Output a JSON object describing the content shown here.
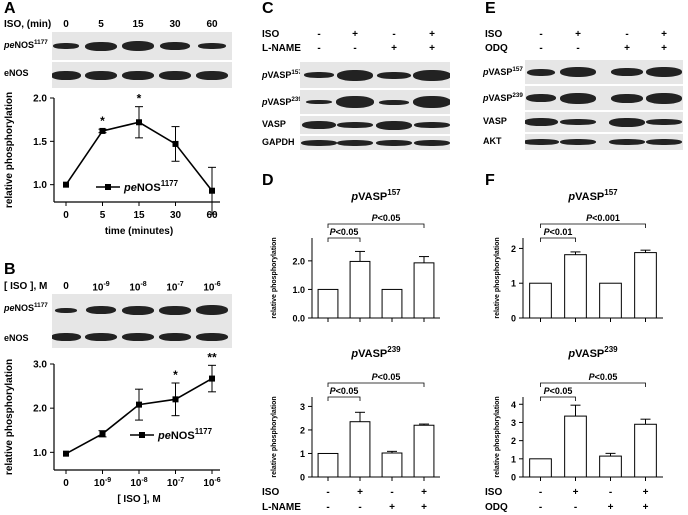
{
  "panels": {
    "A": {
      "letter": "A",
      "iso_header": "ISO, (min)",
      "lanes": [
        "0",
        "5",
        "15",
        "30",
        "60"
      ],
      "blot_rows": [
        {
          "label_prefix": "pe",
          "label_main": "NOS",
          "label_sup": "1177"
        },
        {
          "label_prefix": "",
          "label_main": "eNOS",
          "label_sup": ""
        }
      ],
      "chart": {
        "type": "line",
        "x": [
          "0",
          "5",
          "15",
          "30",
          "60"
        ],
        "values": [
          1.0,
          1.62,
          1.72,
          1.47,
          0.93
        ],
        "errors": [
          0.0,
          0.02,
          0.18,
          0.2,
          0.27
        ],
        "significance": [
          "",
          "*",
          "*",
          "",
          ""
        ],
        "ylim": [
          0.8,
          2.0
        ],
        "yticks": [
          "1.0",
          "1.5",
          "2.0"
        ],
        "xlabel": "time (minutes)",
        "ylabel": "relative phosphorylation",
        "legend": {
          "prefix": "pe",
          "main": "NOS",
          "sup": "1177"
        }
      }
    },
    "B": {
      "letter": "B",
      "iso_header": "[ ISO ], M",
      "lanes": [
        "0",
        "10-9",
        "10-8",
        "10-7",
        "10-6"
      ],
      "blot_rows": [
        {
          "label_prefix": "pe",
          "label_main": "NOS",
          "label_sup": "1177"
        },
        {
          "label_prefix": "",
          "label_main": "eNOS",
          "label_sup": ""
        }
      ],
      "chart": {
        "type": "line",
        "x": [
          "0",
          "10-9",
          "10-8",
          "10-7",
          "10-6"
        ],
        "values": [
          0.97,
          1.42,
          2.08,
          2.2,
          2.67
        ],
        "errors": [
          0.0,
          0.07,
          0.35,
          0.37,
          0.3
        ],
        "significance": [
          "",
          "",
          "",
          "*",
          "**"
        ],
        "ylim": [
          0.6,
          3.0
        ],
        "yticks": [
          "1.0",
          "2.0",
          "3.0"
        ],
        "xlabel": "[ ISO ], M",
        "ylabel": "relative phosphorylation",
        "legend": {
          "prefix": "pe",
          "main": "NOS",
          "sup": "1177"
        }
      }
    },
    "C": {
      "letter": "C",
      "treatments": [
        {
          "name": "ISO",
          "signs": [
            "-",
            "+",
            "-",
            "+"
          ]
        },
        {
          "name": "L-NAME",
          "signs": [
            "-",
            "-",
            "+",
            "+"
          ]
        }
      ],
      "blot_rows": [
        {
          "label_prefix": "p",
          "label_main": "VASP",
          "label_sup": "157"
        },
        {
          "label_prefix": "p",
          "label_main": "VASP",
          "label_sup": "239"
        },
        {
          "label_prefix": "",
          "label_main": "VASP",
          "label_sup": ""
        },
        {
          "label_prefix": "",
          "label_main": "GAPDH",
          "label_sup": ""
        }
      ]
    },
    "D": {
      "letter": "D",
      "charts": [
        {
          "type": "bar",
          "title_prefix": "p",
          "title_main": "VASP",
          "title_sup": "157",
          "values": [
            1.0,
            1.98,
            1.0,
            1.93
          ],
          "errors": [
            0.0,
            0.35,
            0.0,
            0.22
          ],
          "ylim": [
            0,
            2.8
          ],
          "yticks": [
            "0.0",
            "1.0",
            "2.0"
          ],
          "ylabel": "relative phosphorylation",
          "comparisons": [
            {
              "from": 0,
              "to": 1,
              "text": "P<0.05"
            },
            {
              "from": 0,
              "to": 3,
              "text": "P<0.05"
            }
          ]
        },
        {
          "type": "bar",
          "title_prefix": "p",
          "title_main": "VASP",
          "title_sup": "239",
          "values": [
            1.0,
            2.35,
            1.02,
            2.2
          ],
          "errors": [
            0.0,
            0.4,
            0.07,
            0.05
          ],
          "ylim": [
            0,
            3.4
          ],
          "yticks": [
            "0",
            "1",
            "2",
            "3"
          ],
          "ylabel": "relative phosphorylation",
          "comparisons": [
            {
              "from": 0,
              "to": 1,
              "text": "P<0.05"
            },
            {
              "from": 0,
              "to": 3,
              "text": "P<0.05"
            }
          ]
        }
      ],
      "treatments": [
        {
          "name": "ISO",
          "signs": [
            "-",
            "+",
            "-",
            "+"
          ]
        },
        {
          "name": "L-NAME",
          "signs": [
            "-",
            "-",
            "+",
            "+"
          ]
        }
      ]
    },
    "E": {
      "letter": "E",
      "treatments": [
        {
          "name": "ISO",
          "signs": [
            "-",
            "+",
            "-",
            "+"
          ]
        },
        {
          "name": "ODQ",
          "signs": [
            "-",
            "-",
            "+",
            "+"
          ]
        }
      ],
      "blot_rows": [
        {
          "label_prefix": "p",
          "label_main": "VASP",
          "label_sup": "157"
        },
        {
          "label_prefix": "p",
          "label_main": "VASP",
          "label_sup": "239"
        },
        {
          "label_prefix": "",
          "label_main": "VASP",
          "label_sup": ""
        },
        {
          "label_prefix": "",
          "label_main": "AKT",
          "label_sup": ""
        }
      ]
    },
    "F": {
      "letter": "F",
      "charts": [
        {
          "type": "bar",
          "title_prefix": "p",
          "title_main": "VASP",
          "title_sup": "157",
          "values": [
            1.0,
            1.82,
            1.0,
            1.88
          ],
          "errors": [
            0.0,
            0.08,
            0.0,
            0.07
          ],
          "ylim": [
            0,
            2.3
          ],
          "yticks": [
            "0",
            "1",
            "2"
          ],
          "ylabel": "relative phosphorylation",
          "comparisons": [
            {
              "from": 0,
              "to": 1,
              "text": "P<0.01"
            },
            {
              "from": 0,
              "to": 3,
              "text": "P<0.001"
            }
          ]
        },
        {
          "type": "bar",
          "title_prefix": "p",
          "title_main": "VASP",
          "title_sup": "239",
          "values": [
            1.0,
            3.35,
            1.15,
            2.9
          ],
          "errors": [
            0.0,
            0.6,
            0.15,
            0.28
          ],
          "ylim": [
            0,
            4.4
          ],
          "yticks": [
            "0",
            "1",
            "2",
            "3",
            "4"
          ],
          "ylabel": "relative phosphorylation",
          "comparisons": [
            {
              "from": 0,
              "to": 1,
              "text": "P<0.05"
            },
            {
              "from": 0,
              "to": 3,
              "text": "P<0.05"
            }
          ]
        }
      ],
      "treatments": [
        {
          "name": "ISO",
          "signs": [
            "-",
            "+",
            "-",
            "+"
          ]
        },
        {
          "name": "ODQ",
          "signs": [
            "-",
            "-",
            "+",
            "+"
          ]
        }
      ]
    }
  },
  "chart_data": [
    {
      "panel": "A",
      "type": "line",
      "x": [
        "0",
        "5",
        "15",
        "30",
        "60"
      ],
      "y": [
        1.0,
        1.62,
        1.72,
        1.47,
        0.93
      ],
      "xlabel": "time (minutes)",
      "ylabel": "relative phosphorylation",
      "ylim": [
        0.8,
        2.0
      ]
    },
    {
      "panel": "B",
      "type": "line",
      "x": [
        "0",
        "10-9",
        "10-8",
        "10-7",
        "10-6"
      ],
      "y": [
        0.97,
        1.42,
        2.08,
        2.2,
        2.67
      ],
      "xlabel": "[ ISO ], M",
      "ylabel": "relative phosphorylation",
      "ylim": [
        0.6,
        3.0
      ]
    },
    {
      "panel": "D",
      "type": "bar",
      "title": "pVASP157",
      "values": [
        1.0,
        1.98,
        1.0,
        1.93
      ],
      "ylim": [
        0,
        2.8
      ]
    },
    {
      "panel": "D",
      "type": "bar",
      "title": "pVASP239",
      "values": [
        1.0,
        2.35,
        1.02,
        2.2
      ],
      "ylim": [
        0,
        3.4
      ]
    },
    {
      "panel": "F",
      "type": "bar",
      "title": "pVASP157",
      "values": [
        1.0,
        1.82,
        1.0,
        1.88
      ],
      "ylim": [
        0,
        2.3
      ]
    },
    {
      "panel": "F",
      "type": "bar",
      "title": "pVASP239",
      "values": [
        1.0,
        3.35,
        1.15,
        2.9
      ],
      "ylim": [
        0,
        4.4
      ]
    }
  ]
}
